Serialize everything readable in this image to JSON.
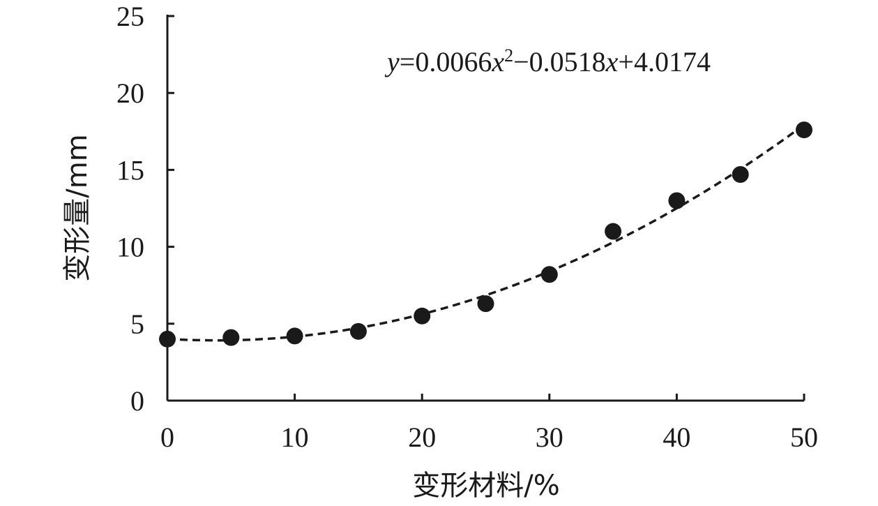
{
  "chart_data": {
    "type": "scatter",
    "title": "",
    "xlabel": "变形材料/%",
    "ylabel": "变形量/mm",
    "xlim": [
      0,
      50
    ],
    "ylim": [
      0,
      25
    ],
    "xticks": [
      0,
      10,
      20,
      30,
      40,
      50
    ],
    "yticks": [
      0,
      5,
      10,
      15,
      20,
      25
    ],
    "grid": false,
    "legend": "none",
    "series": [
      {
        "x": [
          0,
          5,
          10,
          15,
          20,
          25,
          30,
          35,
          40,
          45,
          50
        ],
        "y": [
          4.0,
          4.1,
          4.2,
          4.5,
          5.5,
          6.3,
          8.2,
          11.0,
          13.0,
          14.7,
          17.6
        ]
      }
    ],
    "trendline": {
      "type": "polynomial",
      "coefficients": [
        0.0066,
        -0.0518,
        4.0174
      ],
      "equation": {
        "y": "y",
        "eq1": "=0.0066",
        "x1": "x",
        "exp": "2",
        "eq2": "−0.0518",
        "x2": "x",
        "eq3": "+4.0174"
      }
    },
    "colors": {
      "ink": "#1a1a1a"
    }
  }
}
